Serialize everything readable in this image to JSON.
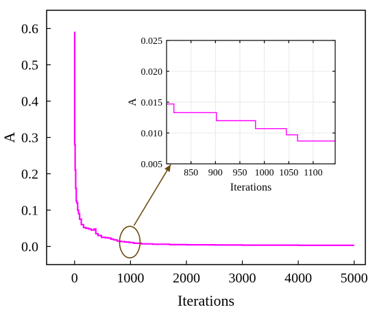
{
  "chart_data": [
    {
      "type": "line",
      "title": "",
      "xlabel": "Iterations",
      "ylabel": "A",
      "xlim": [
        -500,
        5200
      ],
      "ylim": [
        -0.05,
        0.65
      ],
      "xticks": [
        0,
        1000,
        2000,
        3000,
        4000,
        5000
      ],
      "yticks": [
        0.0,
        0.1,
        0.2,
        0.3,
        0.4,
        0.5,
        0.6
      ],
      "xtick_labels": [
        "0",
        "1000",
        "2000",
        "3000",
        "4000",
        "5000"
      ],
      "ytick_labels": [
        "0.0",
        "0.1",
        "0.2",
        "0.3",
        "0.4",
        "0.5",
        "0.6"
      ],
      "grid": false,
      "line_color": "#ff00ff",
      "series": [
        {
          "x": [
            0,
            2,
            2,
            10,
            10,
            20,
            20,
            30,
            30,
            40,
            40,
            55,
            55,
            70,
            70,
            90,
            90,
            120,
            120,
            160,
            160,
            200,
            200,
            250,
            250,
            300,
            300,
            350,
            350,
            380,
            380,
            420,
            420,
            480,
            480,
            550,
            550,
            600,
            600,
            650,
            650,
            700,
            700,
            760,
            760,
            820,
            820,
            900,
            900,
            980,
            980,
            1045,
            1045,
            1070,
            1070,
            1200,
            1200,
            1400,
            1400,
            1700,
            1700,
            2000,
            2000,
            2500,
            2500,
            3000,
            3000,
            4000,
            4000,
            5000
          ],
          "y": [
            0.59,
            0.59,
            0.28,
            0.28,
            0.21,
            0.21,
            0.16,
            0.16,
            0.125,
            0.125,
            0.12,
            0.12,
            0.1,
            0.1,
            0.09,
            0.09,
            0.075,
            0.075,
            0.06,
            0.06,
            0.052,
            0.052,
            0.05,
            0.05,
            0.048,
            0.048,
            0.045,
            0.045,
            0.048,
            0.048,
            0.035,
            0.035,
            0.03,
            0.03,
            0.025,
            0.025,
            0.024,
            0.024,
            0.023,
            0.023,
            0.02,
            0.02,
            0.018,
            0.018,
            0.0147,
            0.0147,
            0.0133,
            0.0133,
            0.012,
            0.012,
            0.0107,
            0.0107,
            0.0096,
            0.0096,
            0.0087,
            0.0087,
            0.007,
            0.007,
            0.006,
            0.006,
            0.005,
            0.005,
            0.0045,
            0.0045,
            0.004,
            0.004,
            0.0035,
            0.0035,
            0.003,
            0.003
          ]
        }
      ],
      "annotations": [
        "ellipse around x≈1000, arrow to inset"
      ]
    },
    {
      "type": "line",
      "title": "",
      "xlabel": "Iterations",
      "ylabel": "A",
      "xlim": [
        800,
        1145
      ],
      "ylim": [
        0.005,
        0.025
      ],
      "xticks": [
        850,
        900,
        950,
        1000,
        1050,
        1100
      ],
      "yticks": [
        0.005,
        0.01,
        0.015,
        0.02,
        0.025
      ],
      "xtick_labels": [
        "850",
        "900",
        "950",
        "1000",
        "1050",
        "1100"
      ],
      "ytick_labels": [
        "0.005",
        "0.010",
        "0.015",
        "0.020",
        "0.025"
      ],
      "grid": true,
      "line_color": "#ff00ff",
      "series": [
        {
          "x": [
            800,
            815,
            815,
            902,
            902,
            982,
            982,
            1045,
            1045,
            1068,
            1068,
            1145
          ],
          "y": [
            0.0147,
            0.0147,
            0.0133,
            0.0133,
            0.012,
            0.012,
            0.0107,
            0.0107,
            0.0097,
            0.0097,
            0.0087,
            0.0087
          ]
        }
      ]
    }
  ],
  "annotation": {
    "ellipse_color": "#6b4a10",
    "arrow_color": "#6b4a10"
  }
}
